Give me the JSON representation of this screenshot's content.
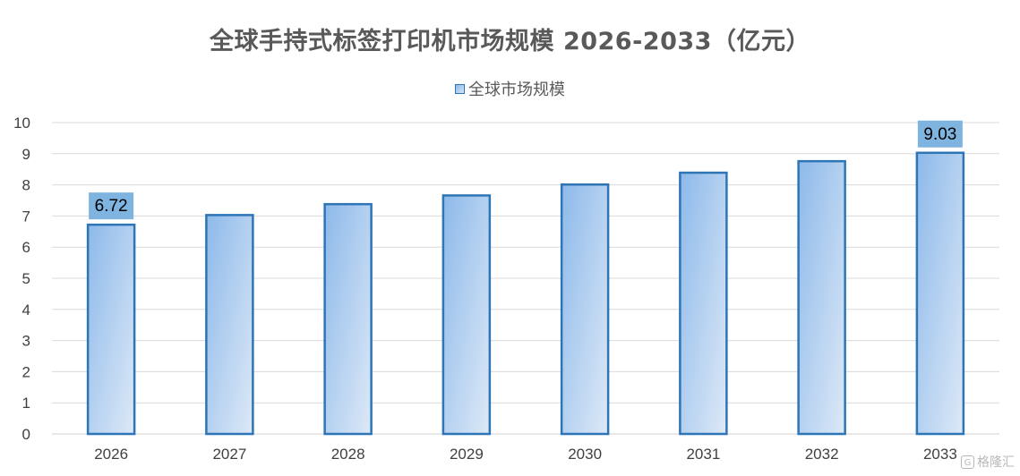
{
  "chart_data": {
    "type": "bar",
    "title": "全球手持式标签打印机市场规模 2026-2033（亿元）",
    "categories": [
      "2026",
      "2027",
      "2028",
      "2029",
      "2030",
      "2031",
      "2032",
      "2033"
    ],
    "series": [
      {
        "name": "全球市场规模",
        "values": [
          6.72,
          7.03,
          7.38,
          7.66,
          8.01,
          8.39,
          8.76,
          9.03
        ]
      }
    ],
    "data_labels": [
      {
        "category": "2026",
        "text": "6.72"
      },
      {
        "category": "2033",
        "text": "9.03"
      }
    ],
    "yticks": [
      "0",
      "1",
      "2",
      "3",
      "4",
      "5",
      "6",
      "7",
      "8",
      "9",
      "10"
    ],
    "ylim": [
      0,
      10
    ],
    "xlabel": "",
    "ylabel": "",
    "grid": true,
    "legend_position": "top-center",
    "colors": {
      "bar_fill_dark": "#8db9ea",
      "bar_fill_light": "#dde9f7",
      "bar_border": "#2e75b6",
      "label_box": "#7fb3e0",
      "grid": "#d9d9d9",
      "axis_text": "#595959"
    }
  },
  "watermark": {
    "icon": "G",
    "text": "格隆汇"
  }
}
